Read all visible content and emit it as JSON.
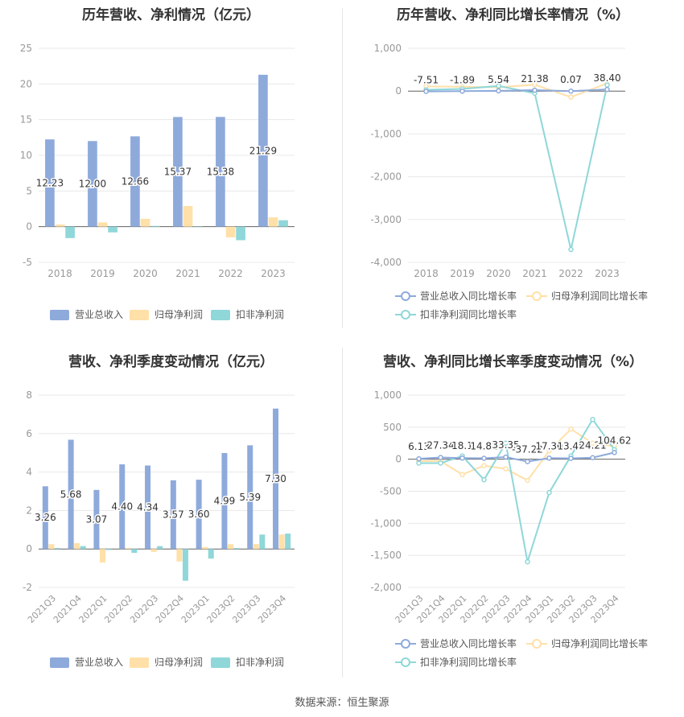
{
  "colors": {
    "revenue": "#8eaadb",
    "net_profit": "#ffe0a8",
    "deducted_profit": "#8fd7d9",
    "revenue_line": "#8eaadb",
    "net_profit_line": "#ffe0a8",
    "deducted_line": "#8fd7d9",
    "axis_text": "#999999",
    "grid": "#e8e8e8",
    "label_text": "#333333"
  },
  "source_text": "数据来源：恒生聚源",
  "chart_data": [
    {
      "type": "bar",
      "title": "历年营收、净利情况（亿元）",
      "categories": [
        "2018",
        "2019",
        "2020",
        "2021",
        "2022",
        "2023"
      ],
      "ylim": [
        -5,
        25
      ],
      "yticks": [
        "-5",
        "0",
        "5",
        "10",
        "15",
        "20",
        "25"
      ],
      "series": [
        {
          "name": "营业总收入",
          "values": [
            12.23,
            12.0,
            12.66,
            15.37,
            15.38,
            21.29
          ]
        },
        {
          "name": "归母净利润",
          "values": [
            0.3,
            0.6,
            1.1,
            2.9,
            -1.5,
            1.3
          ]
        },
        {
          "name": "扣非净利润",
          "values": [
            -1.6,
            -0.8,
            0.1,
            0.0,
            -1.9,
            0.9
          ]
        }
      ],
      "data_labels": [
        "12.23",
        "12.00",
        "12.66",
        "15.37",
        "15.38",
        "21.29"
      ],
      "grid": true,
      "legend": "bottom"
    },
    {
      "type": "line",
      "title": "历年营收、净利同比增长率情况（%）",
      "categories": [
        "2018",
        "2019",
        "2020",
        "2021",
        "2022",
        "2023"
      ],
      "ylim": [
        -4000,
        1000
      ],
      "yticks": [
        "-4,000",
        "-3,000",
        "-2,000",
        "-1,000",
        "0",
        "1,000"
      ],
      "series": [
        {
          "name": "营业总收入同比增长率",
          "values": [
            -7.51,
            -1.89,
            5.54,
            21.38,
            0.07,
            38.4
          ]
        },
        {
          "name": "归母净利润同比增长率",
          "values": [
            110,
            100,
            90,
            150,
            -140,
            180
          ]
        },
        {
          "name": "扣非净利润同比增长率",
          "values": [
            30,
            50,
            120,
            -50,
            -3700,
            140
          ]
        }
      ],
      "data_labels": [
        "-7.51",
        "-1.89",
        "5.54",
        "21.38",
        "0.07",
        "38.40"
      ],
      "grid": true,
      "legend": "bottom"
    },
    {
      "type": "bar",
      "title": "营收、净利季度变动情况（亿元）",
      "categories": [
        "2021Q3",
        "2021Q4",
        "2022Q1",
        "2022Q2",
        "2022Q3",
        "2022Q4",
        "2023Q1",
        "2023Q2",
        "2023Q3",
        "2023Q4"
      ],
      "ylim": [
        -2,
        8
      ],
      "yticks": [
        "-2",
        "0",
        "2",
        "4",
        "6",
        "8"
      ],
      "series": [
        {
          "name": "营业总收入",
          "values": [
            3.26,
            5.68,
            3.07,
            4.4,
            4.34,
            3.57,
            3.6,
            4.99,
            5.39,
            7.3
          ]
        },
        {
          "name": "归母净利润",
          "values": [
            0.25,
            0.3,
            -0.7,
            0.05,
            -0.15,
            -0.65,
            0.1,
            0.25,
            0.25,
            0.75
          ]
        },
        {
          "name": "扣非净利润",
          "values": [
            0.05,
            0.15,
            -0.05,
            -0.2,
            0.15,
            -1.65,
            -0.5,
            0.05,
            0.75,
            0.8
          ]
        }
      ],
      "data_labels": [
        "3.26",
        "5.68",
        "3.07",
        "4.40",
        "4.34",
        "3.57",
        "3.60",
        "4.99",
        "5.39",
        "7.30"
      ],
      "grid": true,
      "legend": "bottom"
    },
    {
      "type": "line",
      "title": "营收、净利同比增长率季度变动情况（%）",
      "categories": [
        "2021Q3",
        "2021Q4",
        "2022Q1",
        "2022Q2",
        "2022Q3",
        "2022Q4",
        "2023Q1",
        "2023Q2",
        "2023Q3",
        "2023Q4"
      ],
      "ylim": [
        -2000,
        1000
      ],
      "yticks": [
        "-2,000",
        "-1,500",
        "-1,000",
        "-500",
        "0",
        "500",
        "1,000"
      ],
      "series": [
        {
          "name": "营业总收入同比增长率",
          "values": [
            6.13,
            27.34,
            18.1,
            14.81,
            33.35,
            -37.22,
            17.3,
            13.48,
            24.21,
            104.62
          ]
        },
        {
          "name": "归母净利润同比增长率",
          "values": [
            -30,
            -30,
            -240,
            -100,
            -150,
            -330,
            130,
            470,
            250,
            200
          ]
        },
        {
          "name": "扣非净利润同比增长率",
          "values": [
            -60,
            -60,
            50,
            -320,
            250,
            -1600,
            -520,
            50,
            620,
            150
          ]
        }
      ],
      "data_labels": [
        "6.13",
        "27.34",
        "18.1",
        "14.81",
        "33.35",
        "-37.22",
        "17.30",
        "13.48",
        "24.21",
        "104.62"
      ],
      "grid": true,
      "legend": "bottom"
    }
  ]
}
